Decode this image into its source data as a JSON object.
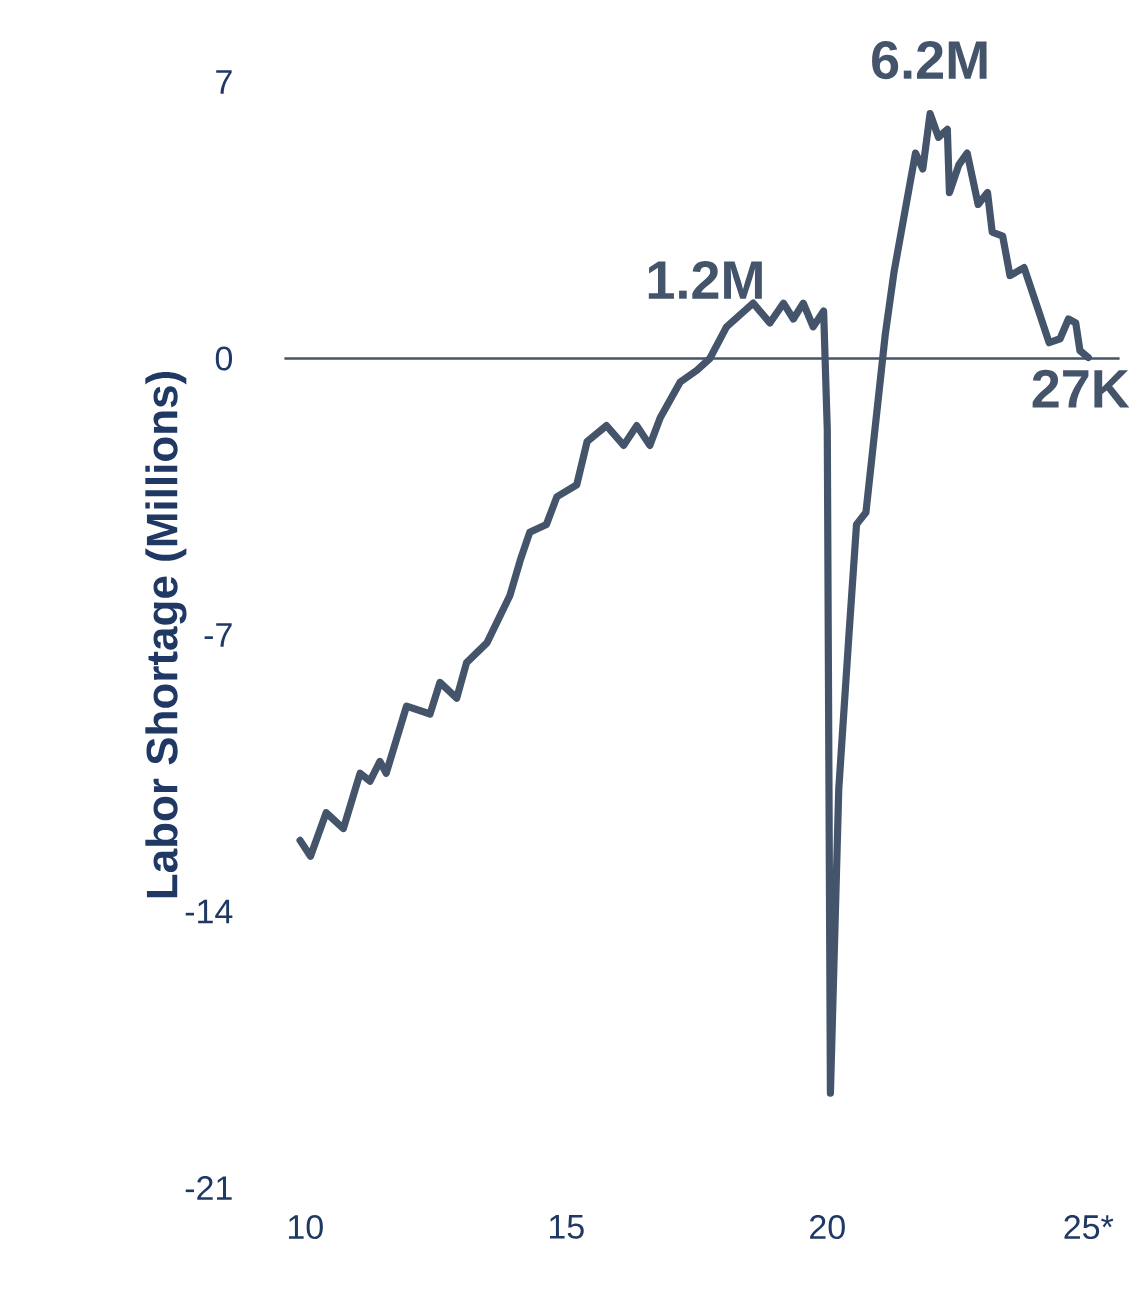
{
  "chart_data": {
    "type": "line",
    "ylabel": "Labor Shortage (Millions)",
    "x": [
      9.9,
      10.1,
      10.4,
      10.73,
      11.05,
      11.24,
      11.43,
      11.55,
      11.94,
      12.39,
      12.58,
      12.9,
      13.09,
      13.48,
      13.92,
      14.12,
      14.3,
      14.62,
      14.82,
      15.2,
      15.4,
      15.77,
      16.1,
      16.35,
      16.6,
      16.8,
      17.18,
      17.5,
      17.75,
      18.07,
      18.58,
      18.9,
      19.16,
      19.35,
      19.54,
      19.73,
      19.93,
      20.0,
      20.06,
      20.22,
      20.42,
      20.56,
      20.74,
      21.11,
      21.28,
      21.58,
      21.69,
      21.83,
      21.97,
      22.13,
      22.3,
      22.34,
      22.52,
      22.68,
      22.89,
      23.07,
      23.16,
      23.36,
      23.5,
      23.77,
      24.05,
      24.25,
      24.46,
      24.62,
      24.76,
      24.84,
      25.0
    ],
    "series": [
      {
        "color": "#44546a",
        "values": [
          -12.2,
          -12.6,
          -11.5,
          -11.9,
          -10.5,
          -10.7,
          -10.2,
          -10.5,
          -8.8,
          -9.0,
          -8.2,
          -8.6,
          -7.7,
          -7.2,
          -6.0,
          -5.1,
          -4.4,
          -4.2,
          -3.5,
          -3.2,
          -2.1,
          -1.7,
          -2.2,
          -1.7,
          -2.2,
          -1.5,
          -0.6,
          -0.3,
          0.0,
          0.8,
          1.4,
          0.9,
          1.4,
          1.0,
          1.4,
          0.8,
          1.2,
          -1.8,
          -18.6,
          -10.9,
          -6.9,
          -4.2,
          -3.9,
          0.6,
          2.2,
          4.4,
          5.2,
          4.8,
          6.2,
          5.6,
          5.8,
          4.2,
          4.9,
          5.2,
          3.9,
          4.2,
          3.2,
          3.1,
          2.1,
          2.3,
          1.2,
          0.4,
          0.5,
          1.0,
          0.9,
          0.2,
          0.027
        ]
      }
    ],
    "xlim": [
      9.6,
      25.6
    ],
    "ylim": [
      -21,
      7
    ],
    "xticks": [
      10,
      15,
      20,
      {
        "value": 25,
        "label": "25*"
      }
    ],
    "yticks": [
      -21,
      -14,
      -7,
      0,
      7
    ],
    "ref_lines": [
      {
        "axis": "y",
        "value": 0,
        "color": "#44546a"
      }
    ],
    "annotations": [
      {
        "text": "1.2M",
        "x": 18.9,
        "y": 1.2
      },
      {
        "text": "6.2M",
        "x": 21.97,
        "y": 6.2
      },
      {
        "text": "27K",
        "x": 25.0,
        "y": 0.027
      }
    ]
  }
}
